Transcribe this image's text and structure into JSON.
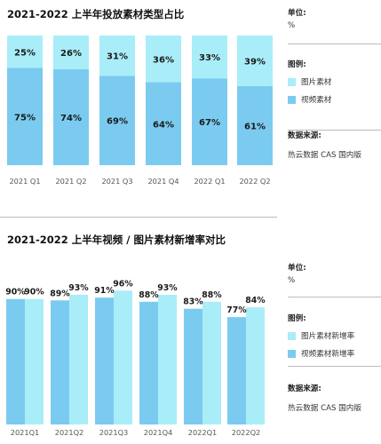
{
  "colors": {
    "light": "#a9edf8",
    "dark": "#7bcbf0",
    "text": "#1a1a1a"
  },
  "chart_data": [
    {
      "type": "bar",
      "stacked": true,
      "title": "2021-2022 上半年投放素材类型占比",
      "categories": [
        "2021 Q1",
        "2021 Q2",
        "2021 Q3",
        "2021 Q4",
        "2022 Q1",
        "2022 Q2"
      ],
      "series": [
        {
          "name": "视频素材",
          "values": [
            75,
            74,
            69,
            64,
            67,
            61
          ],
          "labels": [
            "75%",
            "74%",
            "69%",
            "64%",
            "67%",
            "61%"
          ]
        },
        {
          "name": "图片素材",
          "values": [
            25,
            26,
            31,
            36,
            33,
            39
          ],
          "labels": [
            "25%",
            "26%",
            "31%",
            "36%",
            "33%",
            "39%"
          ]
        }
      ],
      "ylim": [
        0,
        100
      ],
      "unit_label": "单位:",
      "unit": "%",
      "legend_label": "图例:",
      "source_label": "数据来源:",
      "source": "热云数据 CAS 国内版"
    },
    {
      "type": "bar",
      "stacked": false,
      "title": "2021-2022 上半年视频 / 图片素材新增率对比",
      "categories": [
        "2021Q1",
        "2021Q2",
        "2021Q3",
        "2021Q4",
        "2022Q1",
        "2022Q2"
      ],
      "series": [
        {
          "name": "视频素材新增率",
          "values": [
            90,
            89,
            91,
            88,
            83,
            77
          ],
          "labels": [
            "90%",
            "89%",
            "91%",
            "88%",
            "83%",
            "77%"
          ]
        },
        {
          "name": "图片素材新增率",
          "values": [
            90,
            93,
            96,
            93,
            88,
            84
          ],
          "labels": [
            "90%",
            "93%",
            "96%",
            "93%",
            "88%",
            "84%"
          ]
        }
      ],
      "ylim": [
        0,
        100
      ],
      "unit_label": "单位:",
      "unit": "%",
      "legend_label": "图例:",
      "source_label": "数据来源:",
      "source": "热云数据 CAS 国内版"
    }
  ]
}
